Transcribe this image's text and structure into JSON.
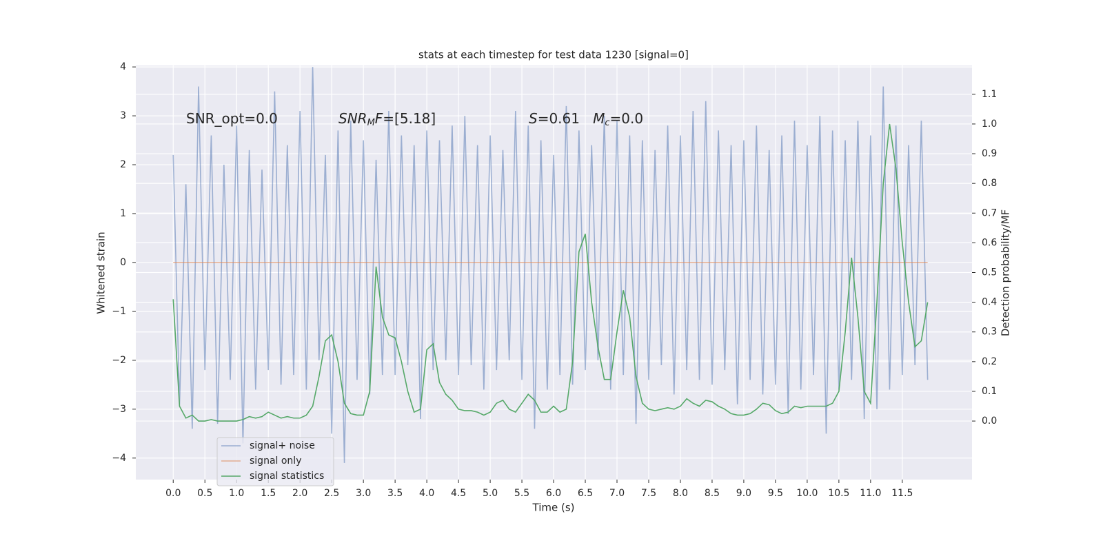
{
  "chart_data": {
    "type": "line",
    "title": "stats at each timestep for test data 1230 [signal=0]",
    "xlabel": "Time (s)",
    "ylabel": "Whitened strain",
    "y2label": "Detection probability/MF",
    "annotations": [
      [
        {
          "text": "SNR_opt=0.0"
        }
      ],
      [
        {
          "text": "SNR",
          "style": "italic"
        },
        {
          "text": "M",
          "style": "sub"
        },
        {
          "text": "F",
          "style": "italic"
        },
        {
          "text": "=[5.18]"
        }
      ],
      [
        {
          "text": "S",
          "style": "italic"
        },
        {
          "text": "=0.61   "
        },
        {
          "text": "M",
          "style": "italic"
        },
        {
          "text": "c",
          "style": "sub"
        },
        {
          "text": "=0.0"
        }
      ]
    ],
    "x": [
      0,
      0.1,
      0.2,
      0.3,
      0.4,
      0.5,
      0.6,
      0.7,
      0.8,
      0.9,
      1,
      1.1,
      1.2,
      1.3,
      1.4,
      1.5,
      1.6,
      1.7,
      1.8,
      1.9,
      2,
      2.1,
      2.2,
      2.3,
      2.4,
      2.5,
      2.6,
      2.7,
      2.8,
      2.9,
      3,
      3.1,
      3.2,
      3.3,
      3.4,
      3.5,
      3.6,
      3.7,
      3.8,
      3.9,
      4,
      4.1,
      4.2,
      4.3,
      4.4,
      4.5,
      4.6,
      4.7,
      4.8,
      4.9,
      5,
      5.1,
      5.2,
      5.3,
      5.4,
      5.5,
      5.6,
      5.7,
      5.8,
      5.9,
      6,
      6.1,
      6.2,
      6.3,
      6.4,
      6.5,
      6.6,
      6.7,
      6.8,
      6.9,
      7,
      7.1,
      7.2,
      7.3,
      7.4,
      7.5,
      7.6,
      7.7,
      7.8,
      7.9,
      8,
      8.1,
      8.2,
      8.3,
      8.4,
      8.5,
      8.6,
      8.7,
      8.8,
      8.9,
      9,
      9.1,
      9.2,
      9.3,
      9.4,
      9.5,
      9.6,
      9.7,
      9.8,
      9.9,
      10,
      10.1,
      10.2,
      10.3,
      10.4,
      10.5,
      10.6,
      10.7,
      10.8,
      10.9,
      11,
      11.1,
      11.2,
      11.3,
      11.4,
      11.5,
      11.6,
      11.7,
      11.8,
      11.9
    ],
    "series": [
      {
        "name": "signal+ noise",
        "color": "#4c72b0",
        "opacity": 0.5,
        "values": [
          2.2,
          -2.9,
          1.6,
          -3.4,
          3.6,
          -2.2,
          2.6,
          -3.3,
          2.0,
          -2.4,
          2.8,
          -3.7,
          2.3,
          -2.6,
          1.9,
          -2.2,
          3.5,
          -2.5,
          2.4,
          -2.3,
          3.1,
          -2.6,
          4.0,
          -2.0,
          2.2,
          -3.5,
          2.7,
          -4.1,
          2.9,
          -2.4,
          2.5,
          -2.7,
          2.1,
          -2.3,
          3.1,
          -2.3,
          2.6,
          -2.1,
          2.4,
          -3.2,
          2.7,
          -2.2,
          2.5,
          -2.0,
          2.8,
          -2.3,
          3.0,
          -2.1,
          2.4,
          -2.6,
          2.6,
          -2.2,
          2.3,
          -2.0,
          3.1,
          -2.4,
          2.8,
          -3.4,
          2.5,
          -2.6,
          2.2,
          -2.3,
          3.2,
          -2.5,
          2.7,
          -2.2,
          2.4,
          -2.0,
          3.0,
          -2.6,
          2.9,
          -2.3,
          2.6,
          -3.3,
          2.5,
          -2.4,
          2.3,
          -2.1,
          2.8,
          -2.7,
          2.6,
          -2.2,
          3.1,
          -2.4,
          3.3,
          -2.5,
          2.7,
          -2.2,
          2.4,
          -2.9,
          2.5,
          -2.4,
          2.8,
          -2.7,
          2.3,
          -2.5,
          2.6,
          -3.1,
          2.9,
          -2.6,
          2.4,
          -2.3,
          3.0,
          -3.5,
          2.7,
          -2.6,
          2.5,
          -2.4,
          2.9,
          -3.2,
          2.6,
          -3.0,
          3.6,
          -2.6,
          2.8,
          -2.3,
          2.4,
          -2.1,
          2.9,
          -2.4
        ]
      },
      {
        "name": "signal only",
        "color": "#dd8452",
        "opacity": 0.6,
        "values": [
          0,
          0,
          0,
          0,
          0,
          0,
          0,
          0,
          0,
          0,
          0,
          0,
          0,
          0,
          0,
          0,
          0,
          0,
          0,
          0,
          0,
          0,
          0,
          0,
          0,
          0,
          0,
          0,
          0,
          0,
          0,
          0,
          0,
          0,
          0,
          0,
          0,
          0,
          0,
          0,
          0,
          0,
          0,
          0,
          0,
          0,
          0,
          0,
          0,
          0,
          0,
          0,
          0,
          0,
          0,
          0,
          0,
          0,
          0,
          0,
          0,
          0,
          0,
          0,
          0,
          0,
          0,
          0,
          0,
          0,
          0,
          0,
          0,
          0,
          0,
          0,
          0,
          0,
          0,
          0,
          0,
          0,
          0,
          0,
          0,
          0,
          0,
          0,
          0,
          0,
          0,
          0,
          0,
          0,
          0,
          0,
          0,
          0,
          0,
          0,
          0,
          0,
          0,
          0,
          0,
          0,
          0,
          0,
          0,
          0,
          0,
          0,
          0,
          0,
          0,
          0,
          0,
          0,
          0,
          0
        ]
      },
      {
        "name": "signal statistics",
        "color": "#55a868",
        "opacity": 1,
        "axis": "y2",
        "values": [
          0.41,
          0.05,
          0.01,
          0.02,
          0.0,
          0.0,
          0.005,
          0.0,
          0.0,
          0.0,
          0.0,
          0.005,
          0.015,
          0.01,
          0.015,
          0.03,
          0.02,
          0.01,
          0.015,
          0.01,
          0.01,
          0.02,
          0.05,
          0.15,
          0.27,
          0.29,
          0.2,
          0.06,
          0.025,
          0.02,
          0.02,
          0.1,
          0.52,
          0.35,
          0.29,
          0.28,
          0.2,
          0.1,
          0.03,
          0.04,
          0.24,
          0.26,
          0.13,
          0.09,
          0.07,
          0.04,
          0.035,
          0.035,
          0.03,
          0.02,
          0.03,
          0.06,
          0.07,
          0.04,
          0.03,
          0.06,
          0.09,
          0.07,
          0.03,
          0.03,
          0.05,
          0.03,
          0.04,
          0.2,
          0.57,
          0.63,
          0.4,
          0.25,
          0.14,
          0.14,
          0.3,
          0.44,
          0.35,
          0.15,
          0.06,
          0.04,
          0.035,
          0.04,
          0.045,
          0.04,
          0.05,
          0.075,
          0.06,
          0.05,
          0.07,
          0.065,
          0.05,
          0.04,
          0.025,
          0.02,
          0.02,
          0.025,
          0.04,
          0.06,
          0.055,
          0.035,
          0.025,
          0.03,
          0.05,
          0.045,
          0.05,
          0.05,
          0.05,
          0.05,
          0.06,
          0.1,
          0.3,
          0.55,
          0.35,
          0.1,
          0.06,
          0.4,
          0.8,
          1.0,
          0.85,
          0.6,
          0.4,
          0.25,
          0.27,
          0.4
        ]
      }
    ],
    "xlim": [
      -0.59,
      12.6
    ],
    "xticks": [
      {
        "value": 0,
        "label": "0.0"
      },
      0.5,
      {
        "value": 1,
        "label": "1.0"
      },
      1.5,
      {
        "value": 2,
        "label": "2.0"
      },
      2.5,
      {
        "value": 3,
        "label": "3.0"
      },
      3.5,
      {
        "value": 4,
        "label": "4.0"
      },
      4.5,
      {
        "value": 5,
        "label": "5.0"
      },
      5.5,
      {
        "value": 6,
        "label": "6.0"
      },
      6.5,
      {
        "value": 7,
        "label": "7.0"
      },
      7.5,
      {
        "value": 8,
        "label": "8.0"
      },
      8.5,
      {
        "value": 9,
        "label": "9.0"
      },
      9.5,
      {
        "value": 10,
        "label": "10.0"
      },
      10.5,
      {
        "value": 11,
        "label": "11.0"
      },
      11.5
    ],
    "ylim": [
      -4.44,
      4.03
    ],
    "yticks": [
      {
        "value": -4,
        "label": "−4"
      },
      {
        "value": -3,
        "label": "−3"
      },
      {
        "value": -2,
        "label": "−2"
      },
      {
        "value": -1,
        "label": "−1"
      },
      0,
      1,
      2,
      3,
      4
    ],
    "y2lim": [
      -0.197,
      1.197
    ],
    "y2ticks": [
      {
        "value": 0,
        "label": "0.0"
      },
      0.1,
      0.2,
      0.3,
      0.4,
      0.5,
      0.6,
      0.7,
      0.8,
      0.9,
      {
        "value": 1,
        "label": "1.0"
      },
      1.1
    ],
    "grid": true,
    "legend": "lower left"
  }
}
